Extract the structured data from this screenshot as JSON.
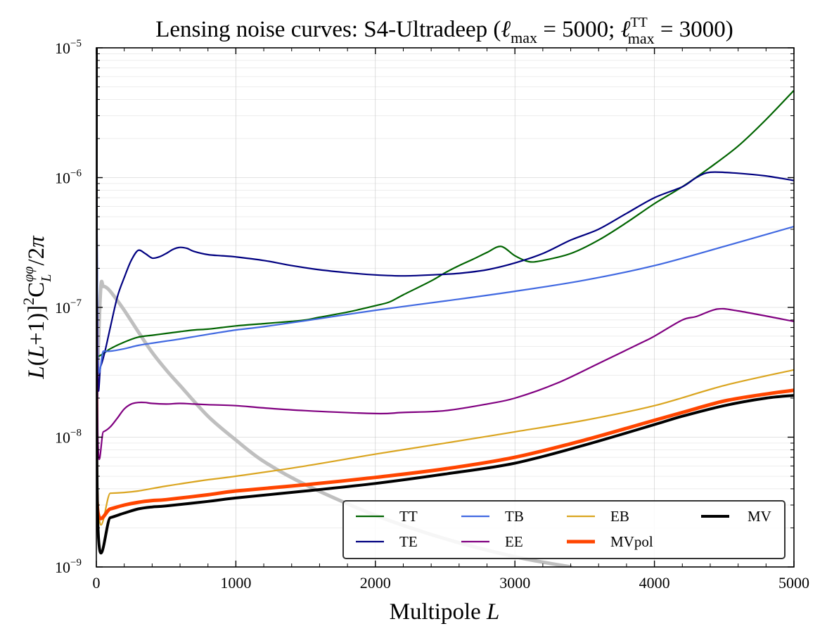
{
  "chart_data": {
    "type": "line",
    "title": "Lensing noise curves: S4-Ultradeep (ℓmax = 5000; ℓmaxTT = 3000)",
    "title_parts": {
      "prefix": "Lensing noise curves: S4-Ultradeep (",
      "ell": "ℓ",
      "sub1": "max",
      "eq1": " = 5000; ",
      "ell2": "ℓ",
      "sup2": "TT",
      "sub2": "max",
      "eq2": " = 3000)"
    },
    "xlabel": "Multipole L",
    "xlabel_parts": {
      "text": "Multipole ",
      "var": "L"
    },
    "ylabel": "L(L+1)]²C_L^φφ/2π",
    "ylabel_parts": {
      "a": "L",
      "b": "(",
      "c": "L",
      "d": "+1)]",
      "e": "2",
      "f": "C",
      "g": "φφ",
      "h": "L",
      "i": "/2",
      "j": "π"
    },
    "xlim": [
      0,
      5000
    ],
    "ylim": [
      1e-09,
      1e-05
    ],
    "yscale": "log",
    "grid": true,
    "legend_position": "lower-right",
    "x_ticks": [
      {
        "value": 0,
        "label": "0"
      },
      {
        "value": 1000,
        "label": "1000"
      },
      {
        "value": 2000,
        "label": "2000"
      },
      {
        "value": 3000,
        "label": "3000"
      },
      {
        "value": 4000,
        "label": "4000"
      },
      {
        "value": 5000,
        "label": "5000"
      }
    ],
    "y_ticks": [
      {
        "value": 1e-09,
        "base": "10",
        "exp": "−9"
      },
      {
        "value": 1e-08,
        "base": "10",
        "exp": "−8"
      },
      {
        "value": 1e-07,
        "base": "10",
        "exp": "−7"
      },
      {
        "value": 1e-06,
        "base": "10",
        "exp": "−6"
      },
      {
        "value": 1e-05,
        "base": "10",
        "exp": "−5"
      }
    ],
    "theory_curve": {
      "color": "#bfbfbf",
      "x": [
        2,
        30,
        50,
        80,
        120,
        200,
        300,
        400,
        500,
        600,
        800,
        1000,
        1200,
        1500,
        2000,
        2500,
        3000,
        3400
      ],
      "y": [
        2e-08,
        1.35e-07,
        1.45e-07,
        1.4e-07,
        1.25e-07,
        9.5e-08,
        6.5e-08,
        4.5e-08,
        3.3e-08,
        2.5e-08,
        1.45e-08,
        9.5e-09,
        6.5e-09,
        4.3e-09,
        2.5e-09,
        1.65e-09,
        1.2e-09,
        1e-09
      ]
    },
    "series": [
      {
        "name": "TT",
        "color": "#006400",
        "width": 2.2,
        "x": [
          0,
          50,
          100,
          200,
          300,
          400,
          500,
          600,
          700,
          800,
          900,
          1000,
          1200,
          1400,
          1500,
          1600,
          1800,
          2000,
          2100,
          2200,
          2400,
          2500,
          2600,
          2700,
          2800,
          2900,
          3000,
          3100,
          3200,
          3400,
          3600,
          3800,
          4000,
          4200,
          4400,
          4600,
          4800,
          5000
        ],
        "y": [
          4.1e-08,
          4.4e-08,
          4.8e-08,
          5.4e-08,
          5.9e-08,
          6.1e-08,
          6.3e-08,
          6.5e-08,
          6.7e-08,
          6.8e-08,
          7e-08,
          7.2e-08,
          7.5e-08,
          7.8e-08,
          8e-08,
          8.4e-08,
          9.2e-08,
          1.03e-07,
          1.1e-07,
          1.25e-07,
          1.6e-07,
          1.85e-07,
          2.1e-07,
          2.35e-07,
          2.65e-07,
          2.95e-07,
          2.5e-07,
          2.25e-07,
          2.3e-07,
          2.6e-07,
          3.3e-07,
          4.5e-07,
          6.3e-07,
          8.5e-07,
          1.2e-06,
          1.75e-06,
          2.8e-06,
          4.7e-06
        ]
      },
      {
        "name": "TE",
        "color": "#000080",
        "width": 2.2,
        "x": [
          0,
          10,
          30,
          60,
          100,
          150,
          200,
          250,
          300,
          350,
          400,
          450,
          500,
          550,
          600,
          650,
          700,
          800,
          900,
          1000,
          1200,
          1400,
          1600,
          1800,
          2000,
          2200,
          2400,
          2600,
          2800,
          3000,
          3200,
          3400,
          3600,
          3800,
          4000,
          4200,
          4300,
          4400,
          4600,
          4800,
          5000
        ],
        "y": [
          1e-05,
          3.4e-08,
          3.5e-08,
          4.5e-08,
          7e-08,
          1.2e-07,
          1.7e-07,
          2.3e-07,
          2.75e-07,
          2.6e-07,
          2.4e-07,
          2.45e-07,
          2.6e-07,
          2.8e-07,
          2.9e-07,
          2.85e-07,
          2.7e-07,
          2.55e-07,
          2.5e-07,
          2.45e-07,
          2.3e-07,
          2.1e-07,
          1.95e-07,
          1.85e-07,
          1.78e-07,
          1.75e-07,
          1.78e-07,
          1.83e-07,
          1.95e-07,
          2.2e-07,
          2.6e-07,
          3.3e-07,
          4e-07,
          5.3e-07,
          7e-07,
          8.5e-07,
          1e-06,
          1.1e-06,
          1.08e-06,
          1.03e-06,
          9.5e-07
        ]
      },
      {
        "name": "TB",
        "color": "#4169e1",
        "width": 2.2,
        "x": [
          0,
          10,
          50,
          100,
          200,
          300,
          400,
          500,
          600,
          800,
          1000,
          1200,
          1500,
          2000,
          2500,
          3000,
          3500,
          4000,
          4500,
          5000
        ],
        "y": [
          1e-05,
          4.6e-08,
          4.6e-08,
          4.6e-08,
          4.8e-08,
          5.1e-08,
          5.3e-08,
          5.5e-08,
          5.7e-08,
          6.2e-08,
          6.7e-08,
          7.1e-08,
          7.9e-08,
          9.5e-08,
          1.12e-07,
          1.33e-07,
          1.62e-07,
          2.1e-07,
          2.95e-07,
          4.2e-07
        ]
      },
      {
        "name": "EE",
        "color": "#800080",
        "width": 2.2,
        "x": [
          0,
          10,
          50,
          100,
          150,
          200,
          250,
          300,
          350,
          400,
          500,
          600,
          700,
          800,
          1000,
          1200,
          1500,
          2000,
          2200,
          2500,
          2800,
          3000,
          3300,
          3600,
          3900,
          4000,
          4200,
          4300,
          4450,
          4600,
          5000
        ],
        "y": [
          1e-05,
          1.1e-08,
          1.1e-08,
          1.2e-08,
          1.4e-08,
          1.65e-08,
          1.8e-08,
          1.85e-08,
          1.85e-08,
          1.82e-08,
          1.8e-08,
          1.82e-08,
          1.8e-08,
          1.78e-08,
          1.75e-08,
          1.68e-08,
          1.6e-08,
          1.52e-08,
          1.55e-08,
          1.6e-08,
          1.8e-08,
          2e-08,
          2.6e-08,
          3.7e-08,
          5.3e-08,
          6e-08,
          8e-08,
          8.5e-08,
          9.7e-08,
          9.4e-08,
          7.8e-08
        ]
      },
      {
        "name": "EB",
        "color": "#daa520",
        "width": 2.2,
        "x": [
          0,
          10,
          100,
          200,
          300,
          500,
          800,
          1000,
          1500,
          2000,
          2500,
          3000,
          3500,
          4000,
          4500,
          5000
        ],
        "y": [
          1e-05,
          3.7e-09,
          3.7e-09,
          3.75e-09,
          3.85e-09,
          4.2e-09,
          4.7e-09,
          5e-09,
          6e-09,
          7.4e-09,
          9e-09,
          1.1e-08,
          1.35e-08,
          1.75e-08,
          2.5e-08,
          3.3e-08
        ]
      },
      {
        "name": "MVpol",
        "color": "#ff4500",
        "width": 5,
        "x": [
          0,
          10,
          100,
          200,
          300,
          400,
          500,
          800,
          1000,
          1500,
          2000,
          2500,
          3000,
          3500,
          4000,
          4200,
          4500,
          4800,
          5000
        ],
        "y": [
          2e-08,
          2.7e-09,
          2.8e-09,
          3e-09,
          3.15e-09,
          3.25e-09,
          3.3e-09,
          3.6e-09,
          3.85e-09,
          4.3e-09,
          4.9e-09,
          5.7e-09,
          7e-09,
          9.5e-09,
          1.35e-08,
          1.55e-08,
          1.9e-08,
          2.15e-08,
          2.3e-08
        ]
      },
      {
        "name": "MV",
        "color": "#000000",
        "width": 4,
        "x": [
          0,
          10,
          100,
          200,
          300,
          400,
          500,
          800,
          1000,
          1500,
          2000,
          2500,
          3000,
          3500,
          4000,
          4200,
          4500,
          4800,
          5000
        ],
        "y": [
          1e-05,
          2.3e-09,
          2.4e-09,
          2.6e-09,
          2.8e-09,
          2.9e-09,
          2.95e-09,
          3.2e-09,
          3.4e-09,
          3.85e-09,
          4.4e-09,
          5.2e-09,
          6.3e-09,
          8.7e-09,
          1.25e-08,
          1.45e-08,
          1.75e-08,
          2e-08,
          2.1e-08
        ]
      }
    ]
  }
}
